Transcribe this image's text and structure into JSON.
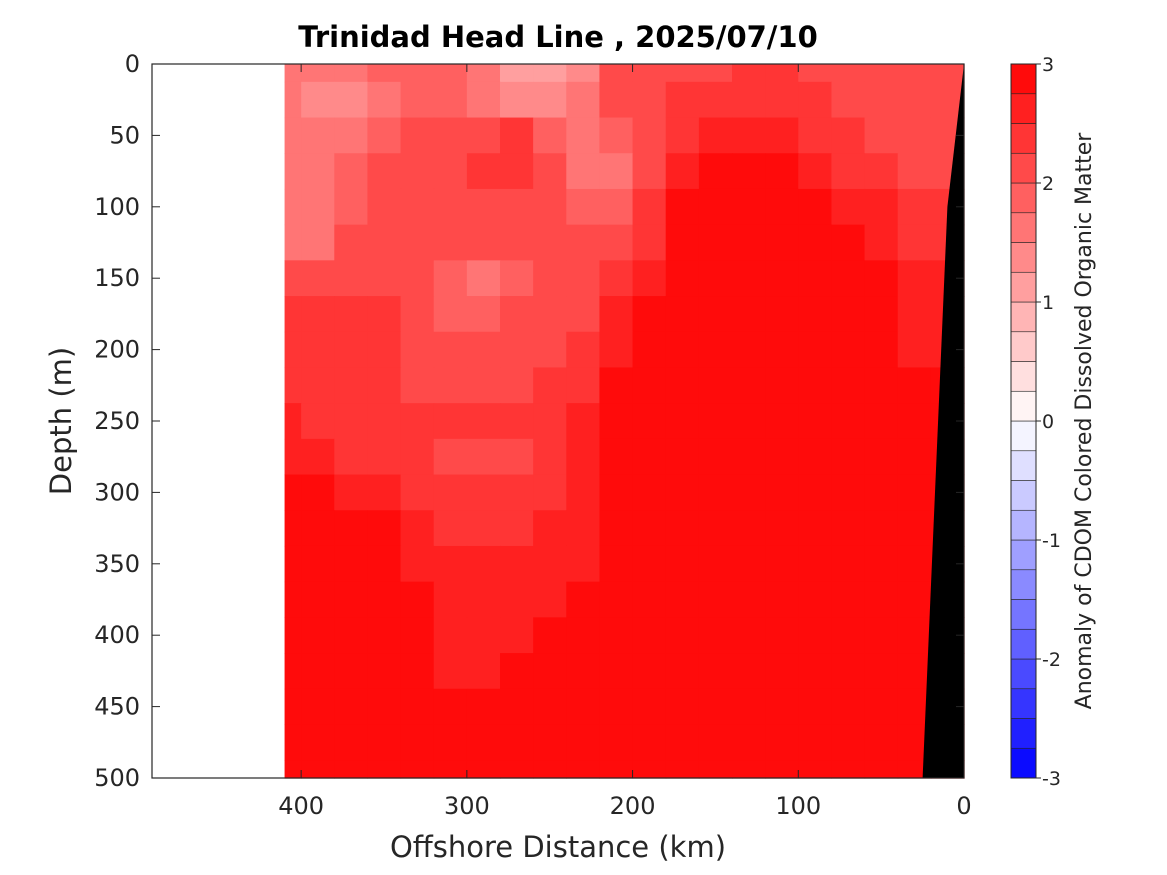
{
  "chart_data": {
    "type": "heatmap",
    "title": "Trinidad Head Line , 2025/07/10",
    "xlabel": "Offshore Distance (km)",
    "ylabel": "Depth (m)",
    "xlim": [
      490,
      0
    ],
    "ylim": [
      0,
      500
    ],
    "x_reversed": true,
    "y_reversed": true,
    "xticks": [
      400,
      300,
      200,
      100,
      0
    ],
    "yticks": [
      0,
      50,
      100,
      150,
      200,
      250,
      300,
      350,
      400,
      450,
      500
    ],
    "grid": false,
    "colorbar": {
      "label": "Anomaly of CDOM Colored Dissolved Organic Matter",
      "min": -3,
      "max": 3,
      "levels": 24,
      "ticks": [
        3,
        2,
        1,
        0,
        -1,
        -2,
        -3
      ],
      "low_color": "#0000ff",
      "mid_color": "#ffffff",
      "high_color": "#ff0000"
    },
    "data_extent_km": [
      410,
      0
    ],
    "bathymetry": {
      "color": "#000000",
      "points": [
        [
          0,
          0
        ],
        [
          0,
          500
        ],
        [
          25,
          500
        ],
        [
          10,
          100
        ],
        [
          0,
          0
        ]
      ]
    },
    "distance_km": [
      410,
      390,
      370,
      350,
      330,
      310,
      290,
      270,
      250,
      230,
      210,
      190,
      170,
      150,
      130,
      110,
      90,
      70,
      50,
      30,
      10
    ],
    "depth_m": [
      0,
      25,
      50,
      75,
      100,
      125,
      150,
      175,
      200,
      225,
      250,
      275,
      300,
      325,
      350,
      375,
      400,
      425,
      450,
      475,
      500
    ],
    "values": [
      [
        1.5,
        1.5,
        1.5,
        1.8,
        1.8,
        1.8,
        1.6,
        1.2,
        1.0,
        1.4,
        2.0,
        2.2,
        2.2,
        2.2,
        2.4,
        2.4,
        2.2,
        2.2,
        2.1,
        2.0,
        2.0
      ],
      [
        1.5,
        1.4,
        1.4,
        1.7,
        1.8,
        1.9,
        1.7,
        1.4,
        1.3,
        1.5,
        2.0,
        2.2,
        2.3,
        2.3,
        2.4,
        2.4,
        2.3,
        2.2,
        2.1,
        2.0,
        2.0
      ],
      [
        1.5,
        1.5,
        1.6,
        1.9,
        2.0,
        2.0,
        2.2,
        2.3,
        1.9,
        1.6,
        1.9,
        2.2,
        2.4,
        2.6,
        2.6,
        2.5,
        2.4,
        2.3,
        2.2,
        2.1,
        2.1
      ],
      [
        1.6,
        1.6,
        1.8,
        2.0,
        2.1,
        2.1,
        2.4,
        2.4,
        2.1,
        1.7,
        1.7,
        2.2,
        2.6,
        2.9,
        2.9,
        2.8,
        2.6,
        2.4,
        2.3,
        2.2,
        2.2
      ],
      [
        1.6,
        1.6,
        1.9,
        2.0,
        2.1,
        2.1,
        2.1,
        2.1,
        2.0,
        1.9,
        1.9,
        2.3,
        2.8,
        3.0,
        3.0,
        3.0,
        2.9,
        2.6,
        2.5,
        2.3,
        2.3
      ],
      [
        1.6,
        1.7,
        2.0,
        2.1,
        2.1,
        2.2,
        2.2,
        2.2,
        2.1,
        2.0,
        2.1,
        2.4,
        2.9,
        3.0,
        3.0,
        3.0,
        3.0,
        2.8,
        2.6,
        2.4,
        2.4
      ],
      [
        2.0,
        2.0,
        2.1,
        2.2,
        2.2,
        1.9,
        1.7,
        1.8,
        2.1,
        2.1,
        2.4,
        2.7,
        3.0,
        3.0,
        3.0,
        3.0,
        3.0,
        3.0,
        2.8,
        2.5,
        2.5
      ],
      [
        2.3,
        2.3,
        2.3,
        2.3,
        2.1,
        1.9,
        1.8,
        2.0,
        2.1,
        2.2,
        2.6,
        3.0,
        3.0,
        3.0,
        3.0,
        3.0,
        3.0,
        3.0,
        2.9,
        2.6,
        2.6
      ],
      [
        2.4,
        2.4,
        2.4,
        2.3,
        2.2,
        2.1,
        2.1,
        2.1,
        2.2,
        2.3,
        2.7,
        3.0,
        3.0,
        3.0,
        3.0,
        3.0,
        3.0,
        3.0,
        3.0,
        2.7,
        2.7
      ],
      [
        2.4,
        2.4,
        2.4,
        2.3,
        2.2,
        2.2,
        2.2,
        2.2,
        2.3,
        2.4,
        2.8,
        3.0,
        3.0,
        3.0,
        3.0,
        3.0,
        3.0,
        3.0,
        3.0,
        2.8,
        2.8
      ],
      [
        2.5,
        2.4,
        2.4,
        2.4,
        2.3,
        2.3,
        2.3,
        2.3,
        2.4,
        2.5,
        2.8,
        3.0,
        3.0,
        3.0,
        3.0,
        3.0,
        3.0,
        3.0,
        3.0,
        2.9,
        2.9
      ],
      [
        2.6,
        2.5,
        2.4,
        2.4,
        2.4,
        2.2,
        2.0,
        2.1,
        2.3,
        2.5,
        2.9,
        3.0,
        3.0,
        3.0,
        3.0,
        3.0,
        3.0,
        3.0,
        3.0,
        2.9,
        2.9
      ],
      [
        2.8,
        2.8,
        2.7,
        2.6,
        2.4,
        2.3,
        2.3,
        2.3,
        2.4,
        2.6,
        2.9,
        3.0,
        3.0,
        3.0,
        3.0,
        3.0,
        3.0,
        3.0,
        3.0,
        3.0,
        3.0
      ],
      [
        2.9,
        2.9,
        2.8,
        2.8,
        2.6,
        2.4,
        2.4,
        2.4,
        2.5,
        2.7,
        3.0,
        3.0,
        3.0,
        3.0,
        3.0,
        3.0,
        3.0,
        3.0,
        3.0,
        3.0,
        3.0
      ],
      [
        3.0,
        3.0,
        3.0,
        2.9,
        2.7,
        2.5,
        2.5,
        2.5,
        2.6,
        2.7,
        3.0,
        3.0,
        3.0,
        3.0,
        3.0,
        3.0,
        3.0,
        3.0,
        3.0,
        3.0,
        3.0
      ],
      [
        3.0,
        3.0,
        3.0,
        3.0,
        2.8,
        2.5,
        2.5,
        2.6,
        2.7,
        2.8,
        3.0,
        3.0,
        3.0,
        3.0,
        3.0,
        3.0,
        3.0,
        3.0,
        3.0,
        3.0,
        3.0
      ],
      [
        3.0,
        3.0,
        3.0,
        3.0,
        2.8,
        2.6,
        2.6,
        2.7,
        2.8,
        2.9,
        3.0,
        3.0,
        3.0,
        3.0,
        3.0,
        3.0,
        3.0,
        3.0,
        3.0,
        3.0,
        3.0
      ],
      [
        3.0,
        3.0,
        3.0,
        3.0,
        2.9,
        2.7,
        2.7,
        2.8,
        2.9,
        3.0,
        3.0,
        3.0,
        3.0,
        3.0,
        3.0,
        3.0,
        3.0,
        3.0,
        3.0,
        3.0,
        3.0
      ],
      [
        3.0,
        3.0,
        3.0,
        3.0,
        2.9,
        2.8,
        2.8,
        2.9,
        3.0,
        3.0,
        3.0,
        3.0,
        3.0,
        3.0,
        3.0,
        3.0,
        3.0,
        3.0,
        3.0,
        3.0,
        3.0
      ],
      [
        3.0,
        3.0,
        3.0,
        3.0,
        3.0,
        2.9,
        2.8,
        2.9,
        3.0,
        3.0,
        3.0,
        3.0,
        3.0,
        3.0,
        3.0,
        3.0,
        3.0,
        3.0,
        3.0,
        3.0,
        3.0
      ],
      [
        3.0,
        3.0,
        3.0,
        3.0,
        3.0,
        2.9,
        2.9,
        3.0,
        3.0,
        3.0,
        3.0,
        3.0,
        3.0,
        3.0,
        3.0,
        3.0,
        3.0,
        3.0,
        3.0,
        3.0,
        3.0
      ]
    ]
  }
}
